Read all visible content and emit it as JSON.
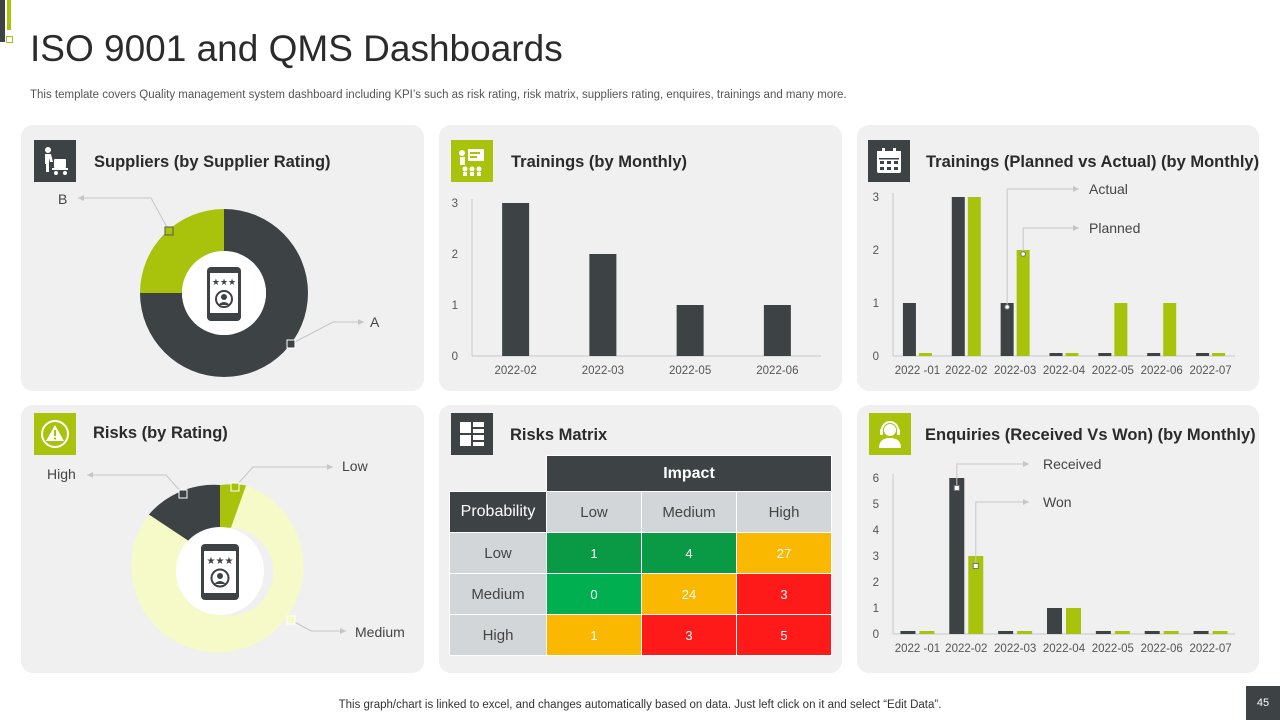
{
  "page": {
    "title": "ISO 9001 and QMS Dashboards",
    "subtitle": "This template covers Quality management system dashboard including KPI’s such as risk rating, risk matrix, suppliers rating, enquires, trainings and many more.",
    "footer": "This graph/chart is linked to excel,  and changes automatically based on data. Just left click on it and select “Edit Data”.",
    "page_number": "45"
  },
  "colors": {
    "dark": "#3d4244",
    "lime": "#a9c30c",
    "pale": "#f5fac8",
    "panel": "#f0f0f0"
  },
  "panels": {
    "suppliers": {
      "title": "Suppliers (by Supplier Rating)",
      "icon": "supplier-cart-icon"
    },
    "trainings_monthly": {
      "title": "Trainings (by Monthly)",
      "icon": "training-board-icon"
    },
    "trainings_pva": {
      "title": "Trainings (Planned vs Actual) (by Monthly)",
      "icon": "calendar-icon"
    },
    "risks": {
      "title": "Risks (by Rating)",
      "icon": "warning-badge-icon"
    },
    "matrix": {
      "title": "Risks Matrix",
      "icon": "grid-layout-icon"
    },
    "enquiries": {
      "title": "Enquiries (Received Vs Won) (by Monthly)",
      "icon": "support-agent-icon"
    }
  },
  "chart_data": [
    {
      "id": "suppliers",
      "type": "pie",
      "title": "Suppliers (by Supplier Rating)",
      "labels": [
        "A",
        "B"
      ],
      "values": [
        75,
        25
      ],
      "colors": [
        "#3d4244",
        "#a9c30c"
      ]
    },
    {
      "id": "trainings_monthly",
      "type": "bar",
      "title": "Trainings (by Monthly)",
      "categories": [
        "2022-02",
        "2022-03",
        "2022-05",
        "2022-06"
      ],
      "values": [
        3,
        2,
        1,
        1
      ],
      "yticks": [
        "0",
        "1",
        "2",
        "3"
      ],
      "ylim": [
        0,
        3
      ]
    },
    {
      "id": "trainings_pva",
      "type": "bar",
      "title": "Trainings (Planned vs Actual) (by Monthly)",
      "categories": [
        "2022 -01",
        "2022-02",
        "2022-03",
        "2022-04",
        "2022-05",
        "2022-06",
        "2022-07"
      ],
      "series": [
        {
          "name": "Actual",
          "values": [
            1,
            3,
            1,
            0,
            0,
            0,
            0
          ]
        },
        {
          "name": "Planned",
          "values": [
            0,
            3,
            2,
            0,
            1,
            1,
            0
          ]
        }
      ],
      "yticks": [
        "0",
        "1",
        "2",
        "3"
      ],
      "ylim": [
        0,
        3
      ]
    },
    {
      "id": "risks",
      "type": "pie",
      "title": "Risks (by Rating)",
      "labels": [
        "Low",
        "High",
        "Medium"
      ],
      "values": [
        4,
        14,
        82
      ],
      "colors": [
        "#a9c30c",
        "#3d4244",
        "#f5fac8"
      ]
    },
    {
      "id": "enquiries",
      "type": "bar",
      "title": "Enquiries (Received Vs Won) (by Monthly)",
      "categories": [
        "2022 -01",
        "2022-02",
        "2022-03",
        "2022-04",
        "2022-05",
        "2022-06",
        "2022-07"
      ],
      "series": [
        {
          "name": "Received",
          "values": [
            0,
            6,
            0,
            1,
            0,
            0,
            0
          ]
        },
        {
          "name": "Won",
          "values": [
            0,
            3,
            0,
            1,
            0,
            0,
            0
          ]
        }
      ],
      "yticks": [
        "0",
        "1",
        "2",
        "3",
        "4",
        "5",
        "6"
      ],
      "ylim": [
        0,
        6
      ]
    }
  ],
  "risk_matrix": {
    "impact_label": "Impact",
    "probability_label": "Probability",
    "impact_levels": [
      "Low",
      "Medium",
      "High"
    ],
    "rows": [
      {
        "label": "Low",
        "cells": [
          {
            "value": "1",
            "color": "#0a9a45"
          },
          {
            "value": "4",
            "color": "#0a9a45"
          },
          {
            "value": "27",
            "color": "#fbb800"
          }
        ]
      },
      {
        "label": "Medium",
        "cells": [
          {
            "value": "0",
            "color": "#00b050"
          },
          {
            "value": "24",
            "color": "#fbb800"
          },
          {
            "value": "3",
            "color": "#ff1a1a"
          }
        ]
      },
      {
        "label": "High",
        "cells": [
          {
            "value": "1",
            "color": "#fbb800"
          },
          {
            "value": "3",
            "color": "#ff1a1a"
          },
          {
            "value": "5",
            "color": "#ff1a1a"
          }
        ]
      }
    ]
  }
}
